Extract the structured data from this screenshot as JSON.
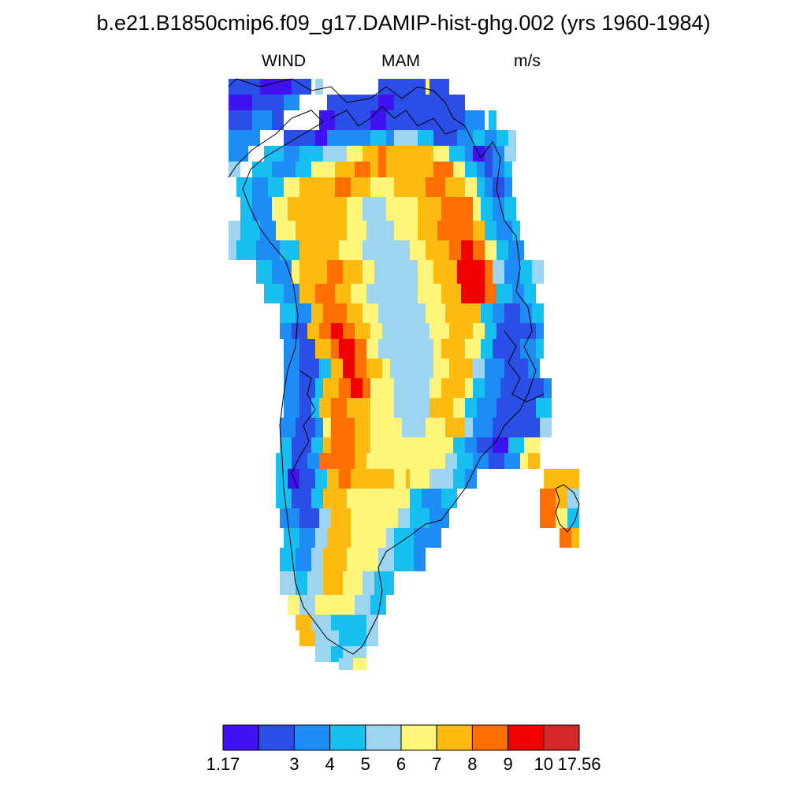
{
  "title": "b.e21.B1850cmip6.f09_g17.DAMIP-hist-ghg.002 (yrs 1960-1984)",
  "left_string": "WIND",
  "center_string": "MAM",
  "right_string": "m/s",
  "colorbar": {
    "colors": [
      "#3f12f2",
      "#2b4ee6",
      "#1e8cf5",
      "#18c0f2",
      "#9dd4ef",
      "#fff57a",
      "#fdbb12",
      "#fc6f00",
      "#f20000",
      "#d52929"
    ],
    "labels": [
      "1.17",
      "3",
      "4",
      "5",
      "6",
      "7",
      "8",
      "9",
      "10",
      "17.56"
    ]
  },
  "map_data": {
    "variable": "WIND",
    "season": "MAM",
    "units": "m/s",
    "region": "Greenland",
    "field_description": "Interior ice sheet shows weaker winds (~6-7 m/s) flanked by strong katabatic bands (9-10+ m/s) inland of the east and west coasts; coastal margins show low wind speeds (3-5 m/s)."
  }
}
